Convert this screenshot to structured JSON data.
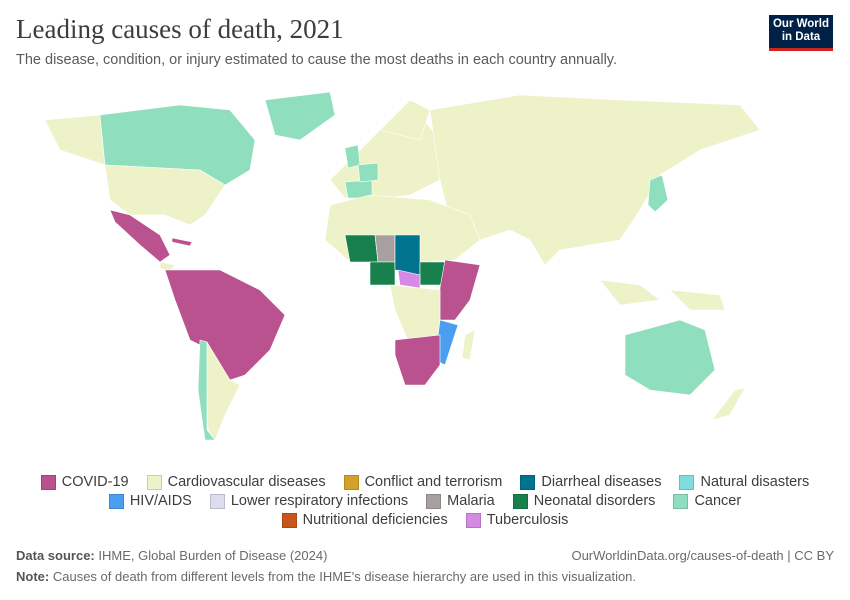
{
  "header": {
    "title": "Leading causes of death, 2021",
    "subtitle": "The disease, condition, or injury estimated to cause the most deaths in each country annually."
  },
  "logo": {
    "lines": [
      "Our World",
      "in Data"
    ]
  },
  "legend": {
    "items": [
      {
        "label": "COVID-19",
        "color": "#b9528e"
      },
      {
        "label": "Cardiovascular diseases",
        "color": "#eef2c9"
      },
      {
        "label": "Conflict and terrorism",
        "color": "#d4a12a"
      },
      {
        "label": "Diarrheal diseases",
        "color": "#00748f"
      },
      {
        "label": "Natural disasters",
        "color": "#7fdcdc"
      },
      {
        "label": "HIV/AIDS",
        "color": "#4b9ff0"
      },
      {
        "label": "Lower respiratory infections",
        "color": "#dddcef"
      },
      {
        "label": "Malaria",
        "color": "#a89f9f"
      },
      {
        "label": "Neonatal disorders",
        "color": "#17804d"
      },
      {
        "label": "Cancer",
        "color": "#8fdfbf"
      },
      {
        "label": "Nutritional deficiencies",
        "color": "#c9551b"
      },
      {
        "label": "Tuberculosis",
        "color": "#d68ae6"
      }
    ]
  },
  "footer": {
    "source_label": "Data source:",
    "source": "IHME, Global Burden of Disease (2024)",
    "url": "OurWorldinData.org/causes-of-death | CC BY",
    "note_label": "Note:",
    "note": "Causes of death from different levels from the IHME's disease hierarchy are used in this visualization."
  }
}
